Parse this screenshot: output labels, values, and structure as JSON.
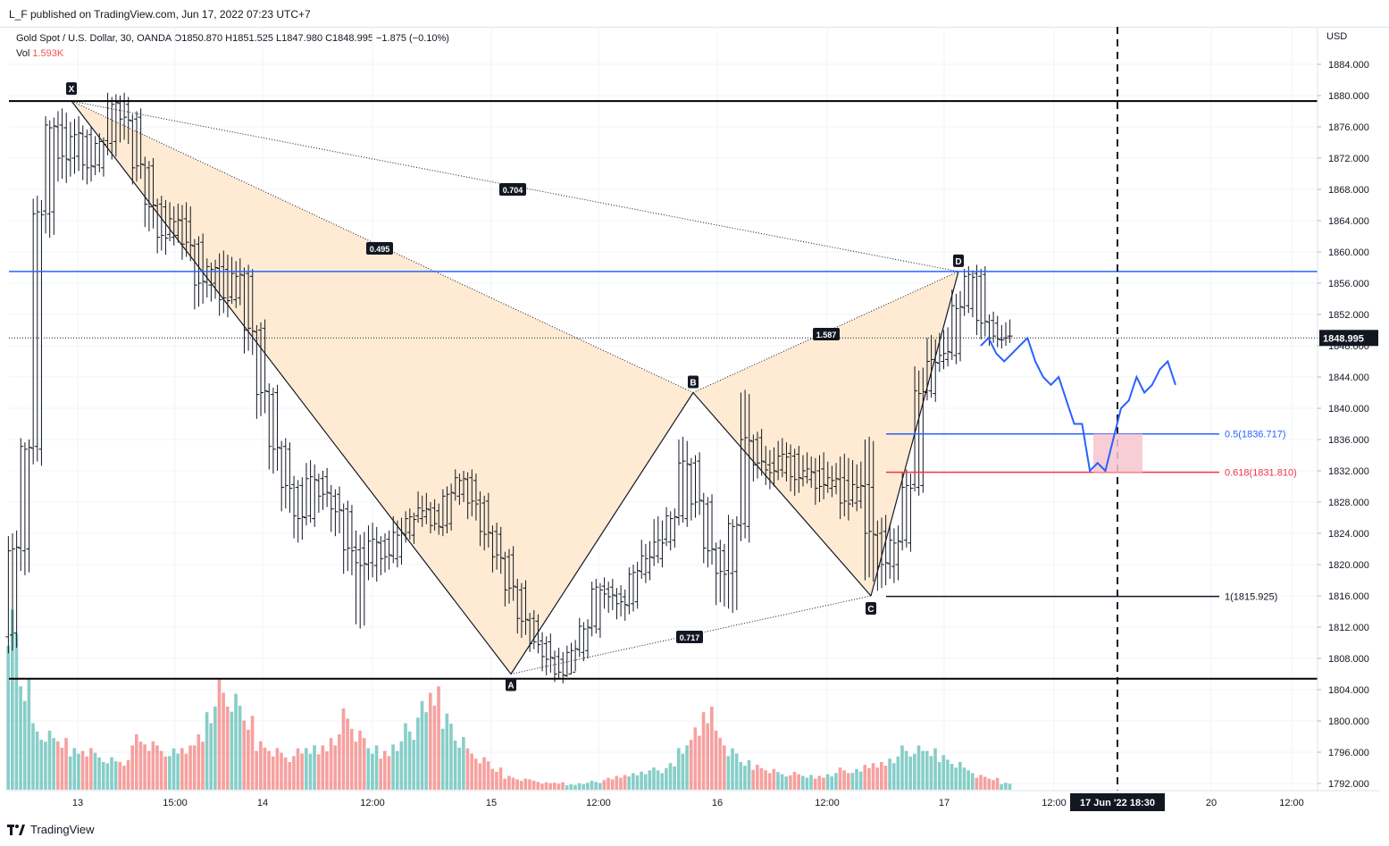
{
  "header": {
    "publisher": "L_F published on TradingView.com, Jun 17, 2022 07:23 UTC+7",
    "symbol_line": "Gold Spot / U.S. Dollar, 30, OANDA  O1850.870  H1851.525  L1847.980  C1848.995  −1.875 (−0.10%)",
    "vol_label": "Vol",
    "vol_value": "1.593K"
  },
  "footer": {
    "brand": "TradingView"
  },
  "colors": {
    "bull": "#26a69a",
    "bear": "#ef5350",
    "harmonic_fill": "#ffe7cc",
    "blue_level": "#2962ff",
    "red_level": "#f23645",
    "projection": "#2962ff",
    "zone": "#f7c6cf"
  },
  "chart_data": {
    "type": "candlestick",
    "title": "Gold Spot / U.S. Dollar, 30, OANDA",
    "currency": "USD",
    "ylim": [
      1790,
      1886
    ],
    "y_ticks": [
      "1884.000",
      "1880.000",
      "1876.000",
      "1872.000",
      "1868.000",
      "1864.000",
      "1860.000",
      "1856.000",
      "1852.000",
      "1848.000",
      "1844.000",
      "1840.000",
      "1836.000",
      "1832.000",
      "1828.000",
      "1824.000",
      "1820.000",
      "1816.000",
      "1812.000",
      "1808.000",
      "1804.000",
      "1800.000",
      "1796.000",
      "1792.000"
    ],
    "x_ticks": [
      "13",
      "15:00",
      "14",
      "12:00",
      "15",
      "12:00",
      "16",
      "12:00",
      "17",
      "12:00",
      "20",
      "12:00"
    ],
    "x_cursor_label": "17 Jun '22   18:30",
    "last_price": "1848.995",
    "horizontal_lines": [
      {
        "price": 1879.3,
        "color": "#000000"
      },
      {
        "price": 1805.4,
        "color": "#000000"
      },
      {
        "price": 1857.5,
        "color": "#2962ff"
      }
    ],
    "harmonic_pattern": {
      "points": [
        {
          "label": "X",
          "price": 1879.3
        },
        {
          "label": "A",
          "price": 1806.0
        },
        {
          "label": "B",
          "price": 1842.0
        },
        {
          "label": "C",
          "price": 1816.0
        },
        {
          "label": "D",
          "price": 1857.5
        }
      ],
      "ratios": [
        "0.495",
        "0.704",
        "1.587",
        "0.717"
      ]
    },
    "fib_levels": [
      {
        "label": "0.5(1836.717)",
        "price": 1836.717
      },
      {
        "label": "0.618(1831.810)",
        "price": 1831.81
      },
      {
        "label": "1(1815.925)",
        "price": 1815.925
      }
    ],
    "projection_path": [
      1848,
      1849,
      1847,
      1846,
      1847,
      1848,
      1849,
      1846,
      1844,
      1843,
      1844,
      1841,
      1838,
      1838,
      1832,
      1833,
      1832,
      1836,
      1840,
      1841,
      1844,
      1842,
      1843,
      1845,
      1846,
      1843
    ],
    "candles": [
      [
        1811,
        1822,
        1809,
        1824
      ],
      [
        1822,
        1835,
        1819,
        1836
      ],
      [
        1835,
        1865,
        1833,
        1867
      ],
      [
        1865,
        1876,
        1862,
        1877
      ],
      [
        1876,
        1872,
        1869,
        1878
      ],
      [
        1872,
        1875,
        1870,
        1877
      ],
      [
        1875,
        1871,
        1869,
        1876
      ],
      [
        1871,
        1874,
        1870,
        1875
      ],
      [
        1874,
        1879,
        1872,
        1880
      ],
      [
        1879,
        1877,
        1874,
        1880
      ],
      [
        1877,
        1871,
        1869,
        1878
      ],
      [
        1871,
        1866,
        1863,
        1872
      ],
      [
        1866,
        1862,
        1860,
        1867
      ],
      [
        1862,
        1864,
        1861,
        1866
      ],
      [
        1864,
        1861,
        1859,
        1866
      ],
      [
        1861,
        1856,
        1853,
        1862
      ],
      [
        1856,
        1858,
        1854,
        1859
      ],
      [
        1858,
        1854,
        1852,
        1860
      ],
      [
        1854,
        1857,
        1853,
        1859
      ],
      [
        1857,
        1850,
        1847,
        1858
      ],
      [
        1850,
        1842,
        1839,
        1851
      ],
      [
        1842,
        1835,
        1832,
        1843
      ],
      [
        1835,
        1830,
        1827,
        1836
      ],
      [
        1830,
        1826,
        1823,
        1831
      ],
      [
        1826,
        1831,
        1825,
        1833
      ],
      [
        1831,
        1829,
        1827,
        1832
      ],
      [
        1829,
        1827,
        1824,
        1830
      ],
      [
        1827,
        1822,
        1819,
        1828
      ],
      [
        1822,
        1820,
        1812,
        1824
      ],
      [
        1820,
        1823,
        1818,
        1825
      ],
      [
        1823,
        1821,
        1819,
        1824
      ],
      [
        1821,
        1824,
        1820,
        1826
      ],
      [
        1824,
        1826,
        1823,
        1827
      ],
      [
        1826,
        1827,
        1825,
        1829
      ],
      [
        1827,
        1825,
        1824,
        1828
      ],
      [
        1825,
        1829,
        1824,
        1830
      ],
      [
        1829,
        1831,
        1828,
        1832
      ],
      [
        1831,
        1828,
        1826,
        1832
      ],
      [
        1828,
        1824,
        1822,
        1829
      ],
      [
        1824,
        1821,
        1819,
        1825
      ],
      [
        1821,
        1817,
        1815,
        1822
      ],
      [
        1817,
        1813,
        1811,
        1818
      ],
      [
        1813,
        1810,
        1809,
        1814
      ],
      [
        1810,
        1808,
        1806,
        1811
      ],
      [
        1808,
        1806,
        1805,
        1809
      ],
      [
        1806,
        1809,
        1806,
        1810
      ],
      [
        1809,
        1812,
        1808,
        1813
      ],
      [
        1812,
        1817,
        1811,
        1818
      ],
      [
        1817,
        1816,
        1814,
        1818
      ],
      [
        1816,
        1815,
        1813,
        1817
      ],
      [
        1815,
        1819,
        1814,
        1820
      ],
      [
        1819,
        1821,
        1818,
        1823
      ],
      [
        1821,
        1823,
        1820,
        1826
      ],
      [
        1823,
        1826,
        1822,
        1827
      ],
      [
        1826,
        1833,
        1825,
        1836
      ],
      [
        1833,
        1828,
        1826,
        1834
      ],
      [
        1828,
        1822,
        1820,
        1829
      ],
      [
        1822,
        1819,
        1815,
        1823
      ],
      [
        1819,
        1825,
        1814,
        1826
      ],
      [
        1825,
        1836,
        1823,
        1842
      ],
      [
        1836,
        1833,
        1831,
        1837
      ],
      [
        1833,
        1832,
        1830,
        1835
      ],
      [
        1832,
        1834,
        1831,
        1836
      ],
      [
        1834,
        1831,
        1829,
        1835
      ],
      [
        1831,
        1832,
        1830,
        1834
      ],
      [
        1832,
        1830,
        1828,
        1834
      ],
      [
        1830,
        1831,
        1829,
        1833
      ],
      [
        1831,
        1828,
        1826,
        1834
      ],
      [
        1828,
        1830,
        1827,
        1833
      ],
      [
        1830,
        1824,
        1818,
        1836
      ],
      [
        1824,
        1820,
        1817,
        1826
      ],
      [
        1820,
        1823,
        1818,
        1825
      ],
      [
        1823,
        1830,
        1822,
        1832
      ],
      [
        1830,
        1842,
        1829,
        1845
      ],
      [
        1842,
        1846,
        1841,
        1849
      ],
      [
        1846,
        1847,
        1845,
        1850
      ],
      [
        1847,
        1853,
        1846,
        1855
      ],
      [
        1853,
        1857,
        1852,
        1858
      ],
      [
        1857,
        1851,
        1849,
        1858
      ],
      [
        1851,
        1849,
        1848,
        1852
      ],
      [
        1849,
        1849,
        1848,
        1851
      ]
    ],
    "volumes": [
      1.3,
      0.8,
      0.45,
      0.4,
      0.35,
      0.3,
      0.3,
      0.25,
      0.22,
      0.2,
      0.4,
      0.35,
      0.3,
      0.28,
      0.3,
      0.4,
      0.6,
      0.75,
      0.65,
      0.5,
      0.35,
      0.3,
      0.25,
      0.28,
      0.3,
      0.32,
      0.4,
      0.55,
      0.4,
      0.3,
      0.28,
      0.35,
      0.45,
      0.6,
      0.7,
      0.55,
      0.38,
      0.28,
      0.22,
      0.15,
      0.1,
      0.08,
      0.07,
      0.05,
      0.05,
      0.04,
      0.05,
      0.06,
      0.08,
      0.1,
      0.12,
      0.14,
      0.15,
      0.18,
      0.3,
      0.45,
      0.6,
      0.4,
      0.28,
      0.2,
      0.18,
      0.15,
      0.12,
      0.12,
      0.1,
      0.1,
      0.12,
      0.15,
      0.14,
      0.18,
      0.2,
      0.24,
      0.3,
      0.3,
      0.28,
      0.25,
      0.2,
      0.15,
      0.1,
      0.08,
      0.05
    ]
  }
}
